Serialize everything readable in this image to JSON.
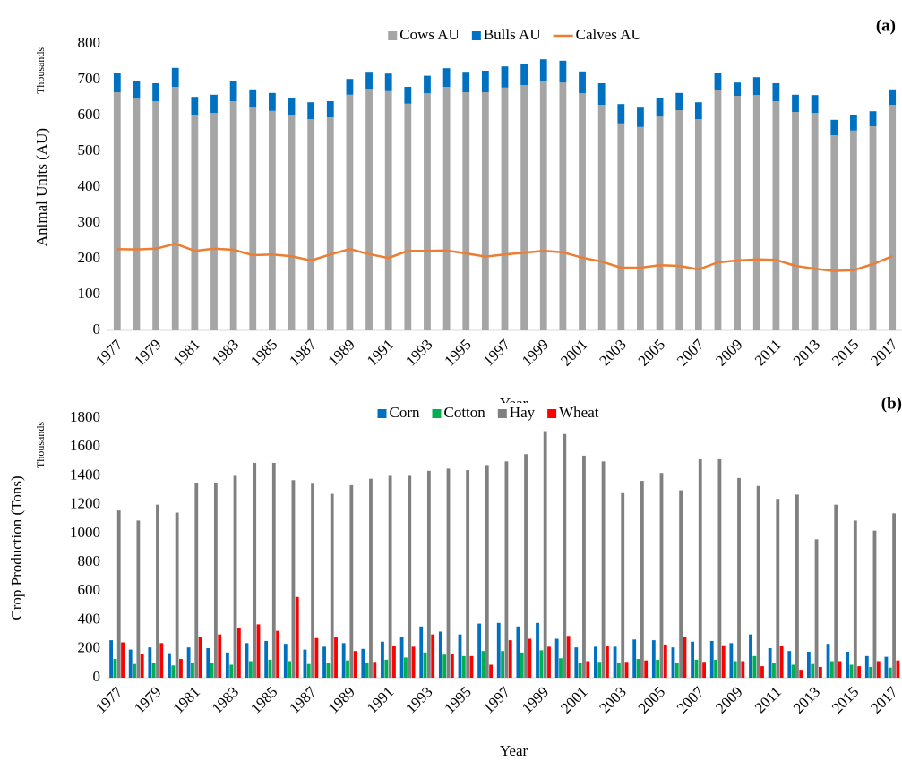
{
  "chart_data": [
    {
      "type": "bar",
      "title": "(a)",
      "stacked": true,
      "x_label": "Year",
      "y_label": "Animal Units (AU)",
      "y_unit_label": "Thousands",
      "categories": [
        "1977",
        null,
        "1979",
        null,
        "1981",
        null,
        "1983",
        null,
        "1985",
        null,
        "1987",
        null,
        "1989",
        null,
        "1991",
        null,
        "1993",
        null,
        "1995",
        null,
        "1997",
        null,
        "1999",
        null,
        "2001",
        null,
        "2003",
        null,
        "2005",
        null,
        "2007",
        null,
        "2009",
        null,
        "2011",
        null,
        "2013",
        null,
        "2015",
        null,
        "2017"
      ],
      "series": [
        {
          "name": "Cows AU",
          "type": "bar",
          "color": "#a5a5a5",
          "values": [
            665,
            647,
            640,
            680,
            600,
            607,
            640,
            622,
            613,
            601,
            590,
            595,
            658,
            675,
            668,
            633,
            662,
            680,
            665,
            665,
            678,
            685,
            695,
            692,
            662,
            630,
            578,
            568,
            597,
            615,
            590,
            670,
            655,
            657,
            640,
            610,
            607,
            545,
            558,
            570,
            630
          ]
        },
        {
          "name": "Bulls AU",
          "type": "bar",
          "color": "#0070c0",
          "values": [
            55,
            50,
            50,
            53,
            52,
            51,
            55,
            51,
            50,
            49,
            47,
            45,
            44,
            47,
            49,
            47,
            49,
            52,
            57,
            60,
            59,
            60,
            62,
            61,
            61,
            60,
            54,
            54,
            53,
            48,
            47,
            48,
            37,
            50,
            50,
            48,
            50,
            43,
            42,
            42,
            43
          ]
        },
        {
          "name": "Calves AU",
          "type": "line",
          "color": "#ed7d31",
          "values": [
            227,
            226,
            228,
            242,
            222,
            228,
            225,
            210,
            212,
            207,
            195,
            212,
            227,
            213,
            202,
            222,
            222,
            223,
            215,
            206,
            212,
            217,
            222,
            218,
            203,
            192,
            175,
            175,
            182,
            180,
            170,
            190,
            195,
            198,
            197,
            180,
            172,
            166,
            168,
            185,
            207
          ]
        }
      ],
      "ylim": [
        0,
        800
      ],
      "yticks": [
        0,
        100,
        200,
        300,
        400,
        500,
        600,
        700,
        800
      ],
      "grid": false,
      "legend": "top"
    },
    {
      "type": "bar",
      "title": "(b)",
      "stacked": false,
      "x_label": "Year",
      "y_label": "Crop Production (Tons)",
      "y_unit_label": "Thousands",
      "categories": [
        "1977",
        null,
        "1979",
        null,
        "1981",
        null,
        "1983",
        null,
        "1985",
        null,
        "1987",
        null,
        "1989",
        null,
        "1991",
        null,
        "1993",
        null,
        "1995",
        null,
        "1997",
        null,
        "1999",
        null,
        "2001",
        null,
        "2003",
        null,
        "2005",
        null,
        "2007",
        null,
        "2009",
        null,
        "2011",
        null,
        "2013",
        null,
        "2015",
        null,
        "2017"
      ],
      "series": [
        {
          "name": "Corn",
          "type": "bar",
          "color": "#0070c0",
          "values": [
            260,
            195,
            210,
            170,
            210,
            205,
            175,
            240,
            255,
            235,
            195,
            215,
            240,
            200,
            250,
            285,
            355,
            320,
            300,
            375,
            380,
            355,
            380,
            270,
            210,
            215,
            215,
            265,
            260,
            210,
            250,
            255,
            240,
            300,
            205,
            185,
            180,
            235,
            180,
            150,
            145
          ]
        },
        {
          "name": "Cotton",
          "type": "bar",
          "color": "#00b050",
          "values": [
            130,
            95,
            105,
            85,
            105,
            100,
            90,
            115,
            125,
            115,
            95,
            105,
            120,
            100,
            125,
            140,
            175,
            160,
            150,
            185,
            185,
            175,
            190,
            135,
            105,
            110,
            105,
            130,
            125,
            105,
            125,
            125,
            115,
            150,
            105,
            90,
            95,
            115,
            90,
            75,
            70
          ]
        },
        {
          "name": "Hay",
          "type": "bar",
          "color": "#808080",
          "values": [
            1160,
            1090,
            1200,
            1145,
            1350,
            1350,
            1400,
            1490,
            1490,
            1370,
            1345,
            1275,
            1335,
            1380,
            1400,
            1400,
            1435,
            1450,
            1440,
            1475,
            1500,
            1550,
            1710,
            1690,
            1540,
            1500,
            1280,
            1365,
            1420,
            1300,
            1515,
            1515,
            1385,
            1330,
            1240,
            1270,
            960,
            1200,
            1090,
            1020,
            1140
          ]
        },
        {
          "name": "Wheat",
          "type": "bar",
          "color": "#ff0000",
          "values": [
            245,
            165,
            240,
            130,
            285,
            300,
            345,
            370,
            325,
            560,
            275,
            280,
            185,
            110,
            220,
            215,
            300,
            165,
            150,
            90,
            260,
            270,
            215,
            290,
            115,
            220,
            110,
            120,
            230,
            280,
            110,
            225,
            115,
            80,
            220,
            55,
            75,
            115,
            80,
            115,
            120
          ]
        }
      ],
      "ylim": [
        0,
        1800
      ],
      "yticks": [
        0,
        200,
        400,
        600,
        800,
        1000,
        1200,
        1400,
        1600,
        1800
      ],
      "grid": false,
      "legend": "top"
    }
  ]
}
